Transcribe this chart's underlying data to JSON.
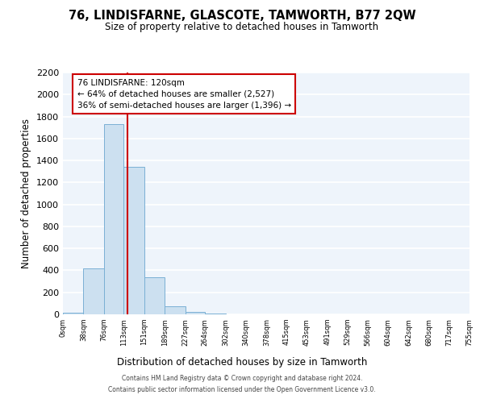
{
  "title": "76, LINDISFARNE, GLASCOTE, TAMWORTH, B77 2QW",
  "subtitle": "Size of property relative to detached houses in Tamworth",
  "xlabel": "Distribution of detached houses by size in Tamworth",
  "ylabel": "Number of detached properties",
  "bar_color": "#cce0f0",
  "bar_edgecolor": "#7ab0d4",
  "bg_color": "#eef4fb",
  "grid_color": "white",
  "bin_edges": [
    0,
    38,
    76,
    113,
    151,
    189,
    227,
    264,
    302,
    340,
    378,
    415,
    453,
    491,
    529,
    566,
    604,
    642,
    680,
    717,
    755
  ],
  "bar_heights": [
    15,
    415,
    1730,
    1345,
    340,
    75,
    25,
    10,
    0,
    0,
    0,
    0,
    0,
    0,
    0,
    0,
    0,
    0,
    0,
    0
  ],
  "property_size": 120,
  "vline_color": "#cc0000",
  "vline_label": "76 LINDISFARNE: 120sqm",
  "annotation_line1": "← 64% of detached houses are smaller (2,527)",
  "annotation_line2": "36% of semi-detached houses are larger (1,396) →",
  "annotation_box_edgecolor": "#cc0000",
  "annotation_box_facecolor": "white",
  "ylim": [
    0,
    2200
  ],
  "tick_labels": [
    "0sqm",
    "38sqm",
    "76sqm",
    "113sqm",
    "151sqm",
    "189sqm",
    "227sqm",
    "264sqm",
    "302sqm",
    "340sqm",
    "378sqm",
    "415sqm",
    "453sqm",
    "491sqm",
    "529sqm",
    "566sqm",
    "604sqm",
    "642sqm",
    "680sqm",
    "717sqm",
    "755sqm"
  ],
  "footer_line1": "Contains HM Land Registry data © Crown copyright and database right 2024.",
  "footer_line2": "Contains public sector information licensed under the Open Government Licence v3.0."
}
